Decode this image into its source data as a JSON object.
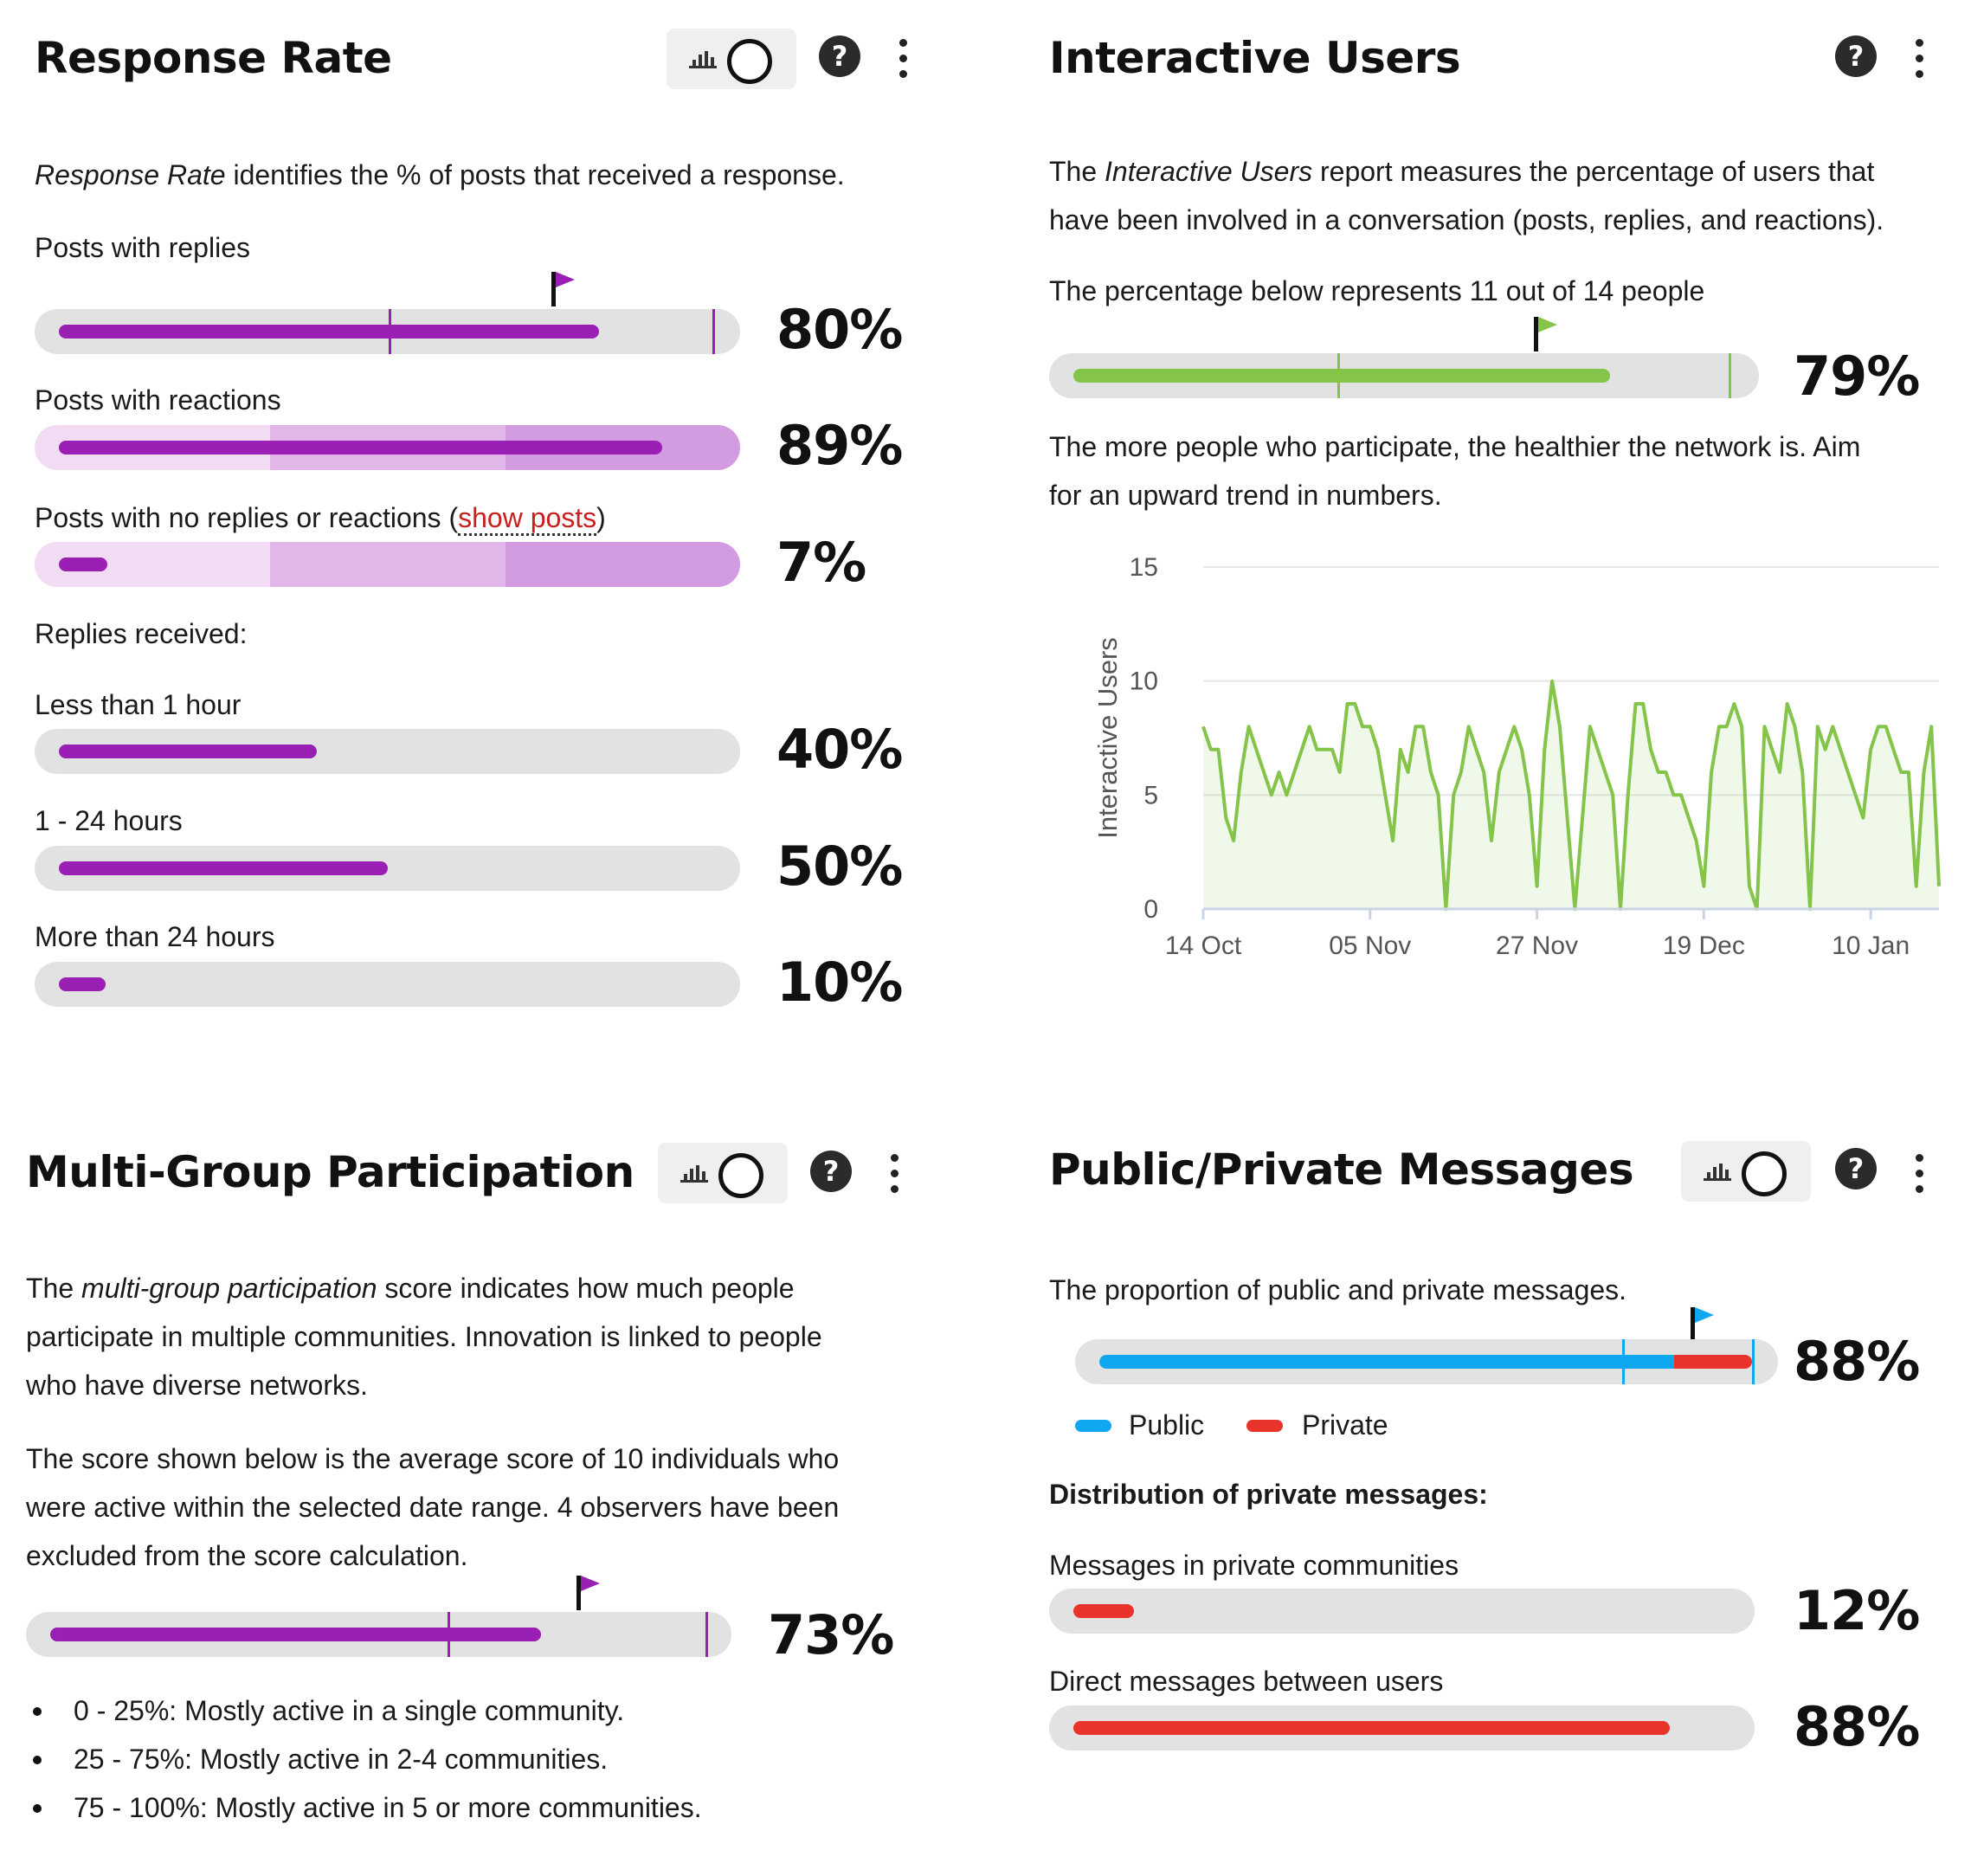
{
  "colors": {
    "purple": "#9a1fb5",
    "green": "#84c44a",
    "blue": "#0fa8f0",
    "red": "#e8342a",
    "track": "#e2e2e2"
  },
  "response_rate": {
    "title": "Response Rate",
    "intro_em": "Response Rate",
    "intro_rest": " identifies the % of posts that received a response.",
    "posts_replies": {
      "label": "Posts with replies",
      "pct": "80%",
      "value": 0.8
    },
    "posts_reactions": {
      "label": "Posts with reactions",
      "pct": "89%",
      "value": 0.89
    },
    "posts_none": {
      "label_before": "Posts with no replies or reactions (",
      "link": "show posts",
      "label_after": ")",
      "pct": "7%",
      "value": 0.07
    },
    "replies_heading": "Replies received:",
    "replies": [
      {
        "label": "Less than 1 hour",
        "pct": "40%",
        "value": 0.4
      },
      {
        "label": "1 - 24 hours",
        "pct": "50%",
        "value": 0.5
      },
      {
        "label": "More than 24 hours",
        "pct": "10%",
        "value": 0.1
      }
    ]
  },
  "interactive_users": {
    "title": "Interactive Users",
    "intro_before": "The ",
    "intro_em": "Interactive Users",
    "intro_after": " report measures the percentage of users that",
    "intro_line2": "have been involved in a conversation (posts, replies, and reactions).",
    "represents": "The percentage below represents 11 out of 14 people",
    "pct": "79%",
    "value": 0.79,
    "advice_line1": "The more people who participate, the healthier the network is. Aim",
    "advice_line2": "for an upward trend in numbers."
  },
  "chart_data": {
    "type": "area",
    "ylabel": "Interactive Users",
    "xlabel": "",
    "ylim": [
      0,
      15
    ],
    "yticks": [
      "15",
      "10",
      "5",
      "0"
    ],
    "xticks": [
      "14 Oct",
      "05 Nov",
      "27 Nov",
      "19 Dec",
      "10 Jan"
    ],
    "grid": true,
    "series": [
      {
        "values": [
          8,
          7,
          7,
          4,
          3,
          6,
          8,
          7,
          6,
          5,
          6,
          5,
          6,
          7,
          8,
          7,
          7,
          7,
          6,
          9,
          9,
          8,
          8,
          7,
          5,
          3,
          7,
          6,
          8,
          8,
          6,
          5,
          0,
          5,
          6,
          8,
          7,
          6,
          3,
          6,
          7,
          8,
          7,
          5,
          1,
          7,
          10,
          8,
          4,
          0,
          4,
          8,
          7,
          6,
          5,
          0,
          5,
          9,
          9,
          7,
          6,
          6,
          5,
          5,
          4,
          3,
          1,
          6,
          8,
          8,
          9,
          8,
          1,
          0,
          8,
          7,
          6,
          9,
          8,
          6,
          0,
          8,
          7,
          8,
          7,
          6,
          5,
          4,
          7,
          8,
          8,
          7,
          6,
          6,
          1,
          6,
          8,
          1
        ],
        "start": "14 Oct",
        "end": "17 Jan"
      }
    ]
  },
  "multi_group": {
    "title": "Multi-Group Participation",
    "p1_before": "The ",
    "p1_em": "multi-group participation",
    "p1_after": " score indicates how much people",
    "p1_line2": "participate in multiple communities. Innovation is linked to people",
    "p1_line3": "who have diverse networks.",
    "p2_line1": "The score shown below is the average score of 10 individuals who",
    "p2_line2": "were active within the selected date range. 4 observers have been",
    "p2_line3": "excluded from the score calculation.",
    "pct": "73%",
    "value": 0.73,
    "bullets": [
      "0 - 25%: Mostly active in a single community.",
      "25 - 75%: Mostly active in 2-4 communities.",
      "75 - 100%: Mostly active in 5 or more communities."
    ]
  },
  "public_private": {
    "title": "Public/Private Messages",
    "intro": "The proportion of public and private messages.",
    "pct": "88%",
    "public_value": 0.88,
    "legend_public": "Public",
    "legend_private": "Private",
    "distribution_heading": "Distribution of private messages:",
    "items": [
      {
        "label": "Messages in private communities",
        "pct": "12%",
        "value": 0.12
      },
      {
        "label": "Direct messages between users",
        "pct": "88%",
        "value": 0.88
      }
    ]
  },
  "icons": {
    "toggle": "chart-toggle-icon",
    "help": "help-icon",
    "help_glyph": "?",
    "menu": "more-vertical-icon",
    "flag": "target-flag-icon"
  }
}
